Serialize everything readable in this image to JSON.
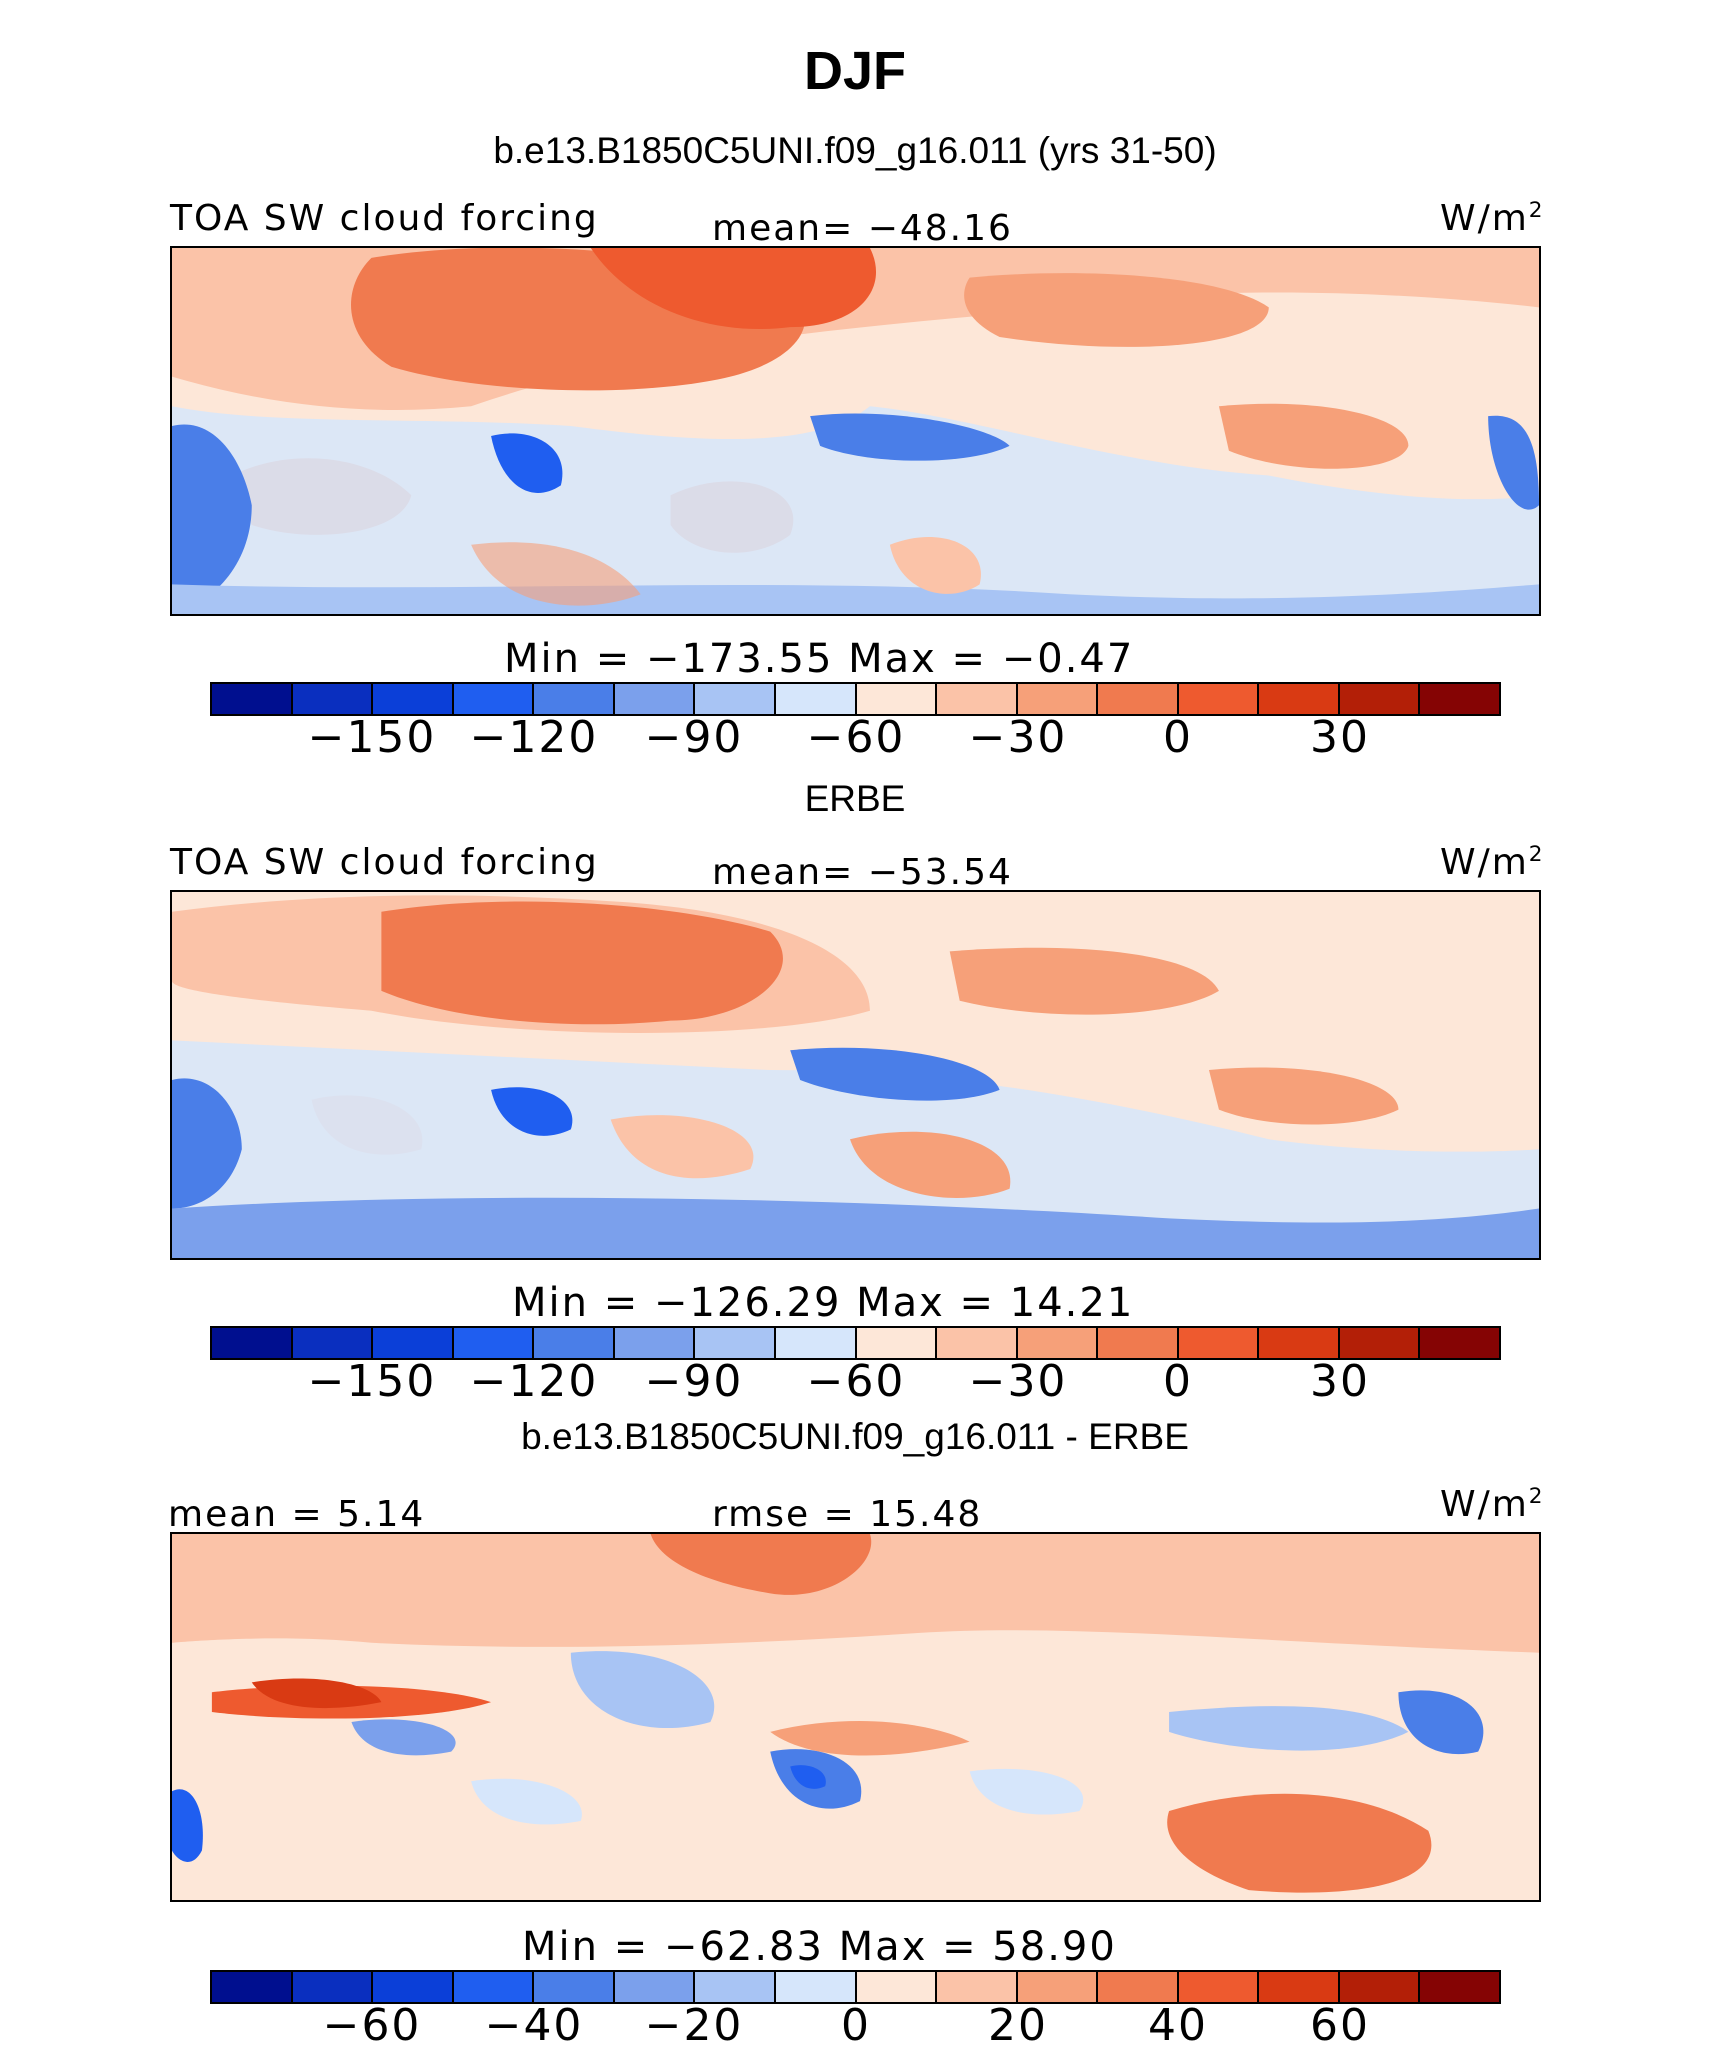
{
  "figure": {
    "title": "DJF",
    "subtitle": "b.e13.B1850C5UNI.f09_g16.011 (yrs 31-50)"
  },
  "chart_data": [
    {
      "type": "heatmap",
      "panel_heading": "",
      "variable": "TOA SW cloud forcing",
      "units": "W/m",
      "units_exp": "2",
      "stat1": "mean= −48.16",
      "stat2": "",
      "minmax": "Min  =  −173.55  Max  =   −0.47",
      "colorbar_ticks": [
        "−150",
        "−120",
        "−90",
        "−60",
        "−30",
        "0",
        "30"
      ],
      "colorbar_colors": [
        "#000f8f",
        "#0a2fbf",
        "#0b3fd8",
        "#1f5ef0",
        "#4a7ee8",
        "#7ba0ec",
        "#a8c4f4",
        "#d6e6fb",
        "#fde7d8",
        "#fbc3a8",
        "#f6a079",
        "#f07a4f",
        "#ee5a2f",
        "#d93a13",
        "#b31f07",
        "#850404"
      ],
      "min": -173.55,
      "max": -0.47,
      "mean": -48.16
    },
    {
      "type": "heatmap",
      "panel_heading": "ERBE",
      "variable": "TOA SW cloud forcing",
      "units": "W/m",
      "units_exp": "2",
      "stat1": "mean= −53.54",
      "stat2": "",
      "minmax": "Min  =  −126.29  Max  =   14.21",
      "colorbar_ticks": [
        "−150",
        "−120",
        "−90",
        "−60",
        "−30",
        "0",
        "30"
      ],
      "colorbar_colors": [
        "#000f8f",
        "#0a2fbf",
        "#0b3fd8",
        "#1f5ef0",
        "#4a7ee8",
        "#7ba0ec",
        "#a8c4f4",
        "#d6e6fb",
        "#fde7d8",
        "#fbc3a8",
        "#f6a079",
        "#f07a4f",
        "#ee5a2f",
        "#d93a13",
        "#b31f07",
        "#850404"
      ],
      "min": -126.29,
      "max": 14.21,
      "mean": -53.54
    },
    {
      "type": "heatmap",
      "panel_heading": "b.e13.B1850C5UNI.f09_g16.011 - ERBE",
      "variable": "",
      "units": "W/m",
      "units_exp": "2",
      "stat1": "mean =    5.14",
      "stat2": "rmse  =   15.48",
      "minmax": "Min  =  −62.83  Max  =   58.90",
      "colorbar_ticks": [
        "−60",
        "−40",
        "−20",
        "0",
        "20",
        "40",
        "60"
      ],
      "colorbar_colors": [
        "#000f8f",
        "#0a2fbf",
        "#0b3fd8",
        "#1f5ef0",
        "#4a7ee8",
        "#7ba0ec",
        "#a8c4f4",
        "#d6e6fb",
        "#fde7d8",
        "#fbc3a8",
        "#f6a079",
        "#f07a4f",
        "#ee5a2f",
        "#d93a13",
        "#b31f07",
        "#850404"
      ],
      "min": -62.83,
      "max": 58.9,
      "mean": 5.14,
      "rmse": 15.48
    }
  ]
}
